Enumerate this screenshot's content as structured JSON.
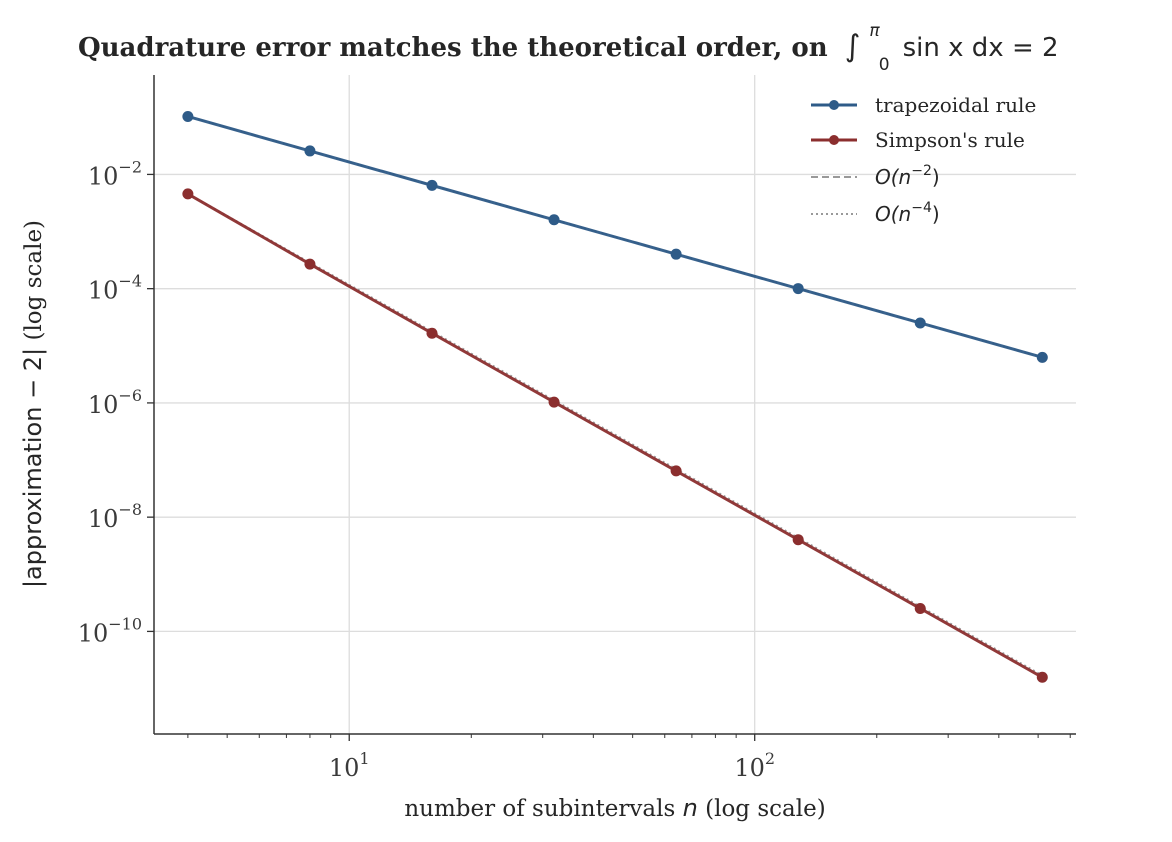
{
  "chart_data": {
    "type": "line",
    "title": "Quadrature error matches the theoretical order, on ∫₀^π sin x dx = 2",
    "title_parts": {
      "prefix": "Quadrature error matches the theoretical order, on",
      "integral_sign": "∫",
      "upper_limit": "π",
      "lower_limit": "0",
      "integrand": "sin x dx = 2"
    },
    "xlabel": "number of subintervals n (log scale)",
    "xlabel_parts": {
      "pre": "number of subintervals ",
      "var": "n",
      "post": " (log scale)"
    },
    "ylabel": "|approximation − 2| (log scale)",
    "ylabel_parts": {
      "math": "|approximation − 2|",
      "post": " (log scale)"
    },
    "xscale": "log",
    "yscale": "log",
    "xlim": [
      3.3,
      620
    ],
    "ylim": [
      1.6e-12,
      0.55
    ],
    "grid": true,
    "legend_position": "top-right",
    "x_ticks": [
      {
        "value": 10,
        "base": "10",
        "exp": "1"
      },
      {
        "value": 100,
        "base": "10",
        "exp": "2"
      }
    ],
    "y_ticks": [
      {
        "value": 0.01,
        "base": "10",
        "exp": "−2"
      },
      {
        "value": 0.0001,
        "base": "10",
        "exp": "−4"
      },
      {
        "value": 1e-06,
        "base": "10",
        "exp": "−6"
      },
      {
        "value": 1e-08,
        "base": "10",
        "exp": "−8"
      },
      {
        "value": 1e-10,
        "base": "10",
        "exp": "−10"
      }
    ],
    "x": [
      4,
      8,
      16,
      32,
      64,
      128,
      256,
      512
    ],
    "series": [
      {
        "name": "trapezoidal rule",
        "color": "#2e5b88",
        "values": [
          0.10342,
          0.025768,
          0.0064297,
          0.0016064,
          0.00040157,
          0.00010039,
          2.5098e-05,
          6.2745e-06
        ]
      },
      {
        "name": "Simpson's rule",
        "color": "#8b2e2e",
        "values": [
          0.0045598,
          0.00026917,
          1.6591e-05,
          1.0334e-06,
          6.453e-08,
          4.032e-09,
          2.52e-10,
          1.575e-11
        ]
      }
    ],
    "reference_lines": [
      {
        "label_base": "O(n",
        "label_exp": "−2",
        "label_close": ")",
        "order": 2,
        "anchor_index": 0,
        "anchor_series": 0,
        "style": "dashed",
        "color": "#999999"
      },
      {
        "label_base": "O(n",
        "label_exp": "−4",
        "label_close": ")",
        "order": 4,
        "anchor_index": 0,
        "anchor_series": 1,
        "style": "dotted",
        "color": "#999999"
      }
    ]
  }
}
